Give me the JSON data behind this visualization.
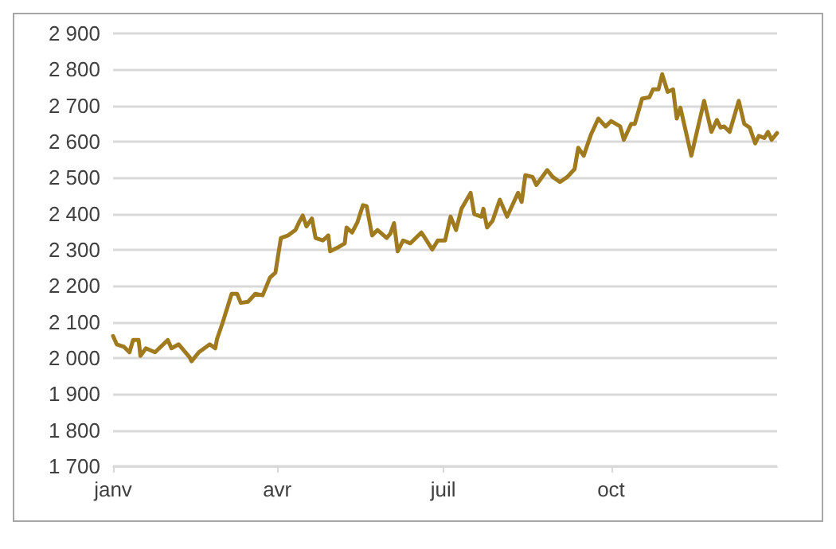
{
  "chart_data": {
    "type": "line",
    "x": [
      "--01-01",
      "--01-03",
      "--01-07",
      "--01-10",
      "--01-12",
      "--01-15",
      "--01-16",
      "--01-19",
      "--01-24",
      "--01-31",
      "--02-02",
      "--02-06",
      "--02-12",
      "--02-13",
      "--02-17",
      "--02-20",
      "--02-23",
      "--02-26",
      "--02-27",
      "--03-02",
      "--03-07",
      "--03-10",
      "--03-12",
      "--03-16",
      "--03-20",
      "--03-24",
      "--03-28",
      "--03-31",
      "--04-03",
      "--04-07",
      "--04-11",
      "--04-13",
      "--04-15",
      "--04-17",
      "--04-20",
      "--04-22",
      "--04-26",
      "--04-29",
      "--04-30",
      "--05-04",
      "--05-08",
      "--05-09",
      "--05-12",
      "--05-15",
      "--05-18",
      "--05-20",
      "--05-23",
      "--05-26",
      "--05-31",
      "--06-02",
      "--06-04",
      "--06-06",
      "--06-09",
      "--06-13",
      "--06-19",
      "--06-21",
      "--06-25",
      "--06-28",
      "--07-02",
      "--07-05",
      "--07-08",
      "--07-11",
      "--07-16",
      "--07-18",
      "--07-22",
      "--07-23",
      "--07-25",
      "--07-28",
      "--08-01",
      "--08-05",
      "--08-11",
      "--08-13",
      "--08-15",
      "--08-19",
      "--08-21",
      "--08-27",
      "--08-30",
      "--09-03",
      "--09-07",
      "--09-11",
      "--09-13",
      "--09-16",
      "--09-20",
      "--09-24",
      "--09-28",
      "--10-01",
      "--10-06",
      "--10-08",
      "--10-12",
      "--10-14",
      "--10-18",
      "--10-22",
      "--10-24",
      "--10-27",
      "--10-29",
      "--11-01",
      "--11-04",
      "--11-06",
      "--11-08",
      "--11-14",
      "--11-21",
      "--11-25",
      "--11-28",
      "--11-30",
      "--12-02",
      "--12-05",
      "--12-10",
      "--12-13",
      "--12-16",
      "--12-19",
      "--12-21",
      "--12-24",
      "--12-26",
      "--12-28",
      "--12-31"
    ],
    "series": [
      {
        "color": "#a07a1e",
        "values": [
          2061,
          2038,
          2031,
          2016,
          2050,
          2050,
          2006,
          2027,
          2016,
          2050,
          2027,
          2038,
          2002,
          1991,
          2016,
          2027,
          2038,
          2027,
          2053,
          2097,
          2178,
          2178,
          2153,
          2156,
          2178,
          2174,
          2223,
          2237,
          2333,
          2340,
          2355,
          2377,
          2395,
          2365,
          2387,
          2333,
          2326,
          2340,
          2296,
          2306,
          2318,
          2362,
          2348,
          2377,
          2424,
          2421,
          2340,
          2355,
          2333,
          2345,
          2374,
          2296,
          2326,
          2318,
          2348,
          2333,
          2301,
          2326,
          2326,
          2392,
          2355,
          2414,
          2458,
          2399,
          2392,
          2414,
          2362,
          2380,
          2439,
          2392,
          2458,
          2433,
          2507,
          2502,
          2480,
          2521,
          2502,
          2488,
          2502,
          2524,
          2583,
          2561,
          2620,
          2664,
          2642,
          2657,
          2642,
          2605,
          2649,
          2649,
          2719,
          2723,
          2745,
          2745,
          2787,
          2738,
          2745,
          2664,
          2694,
          2561,
          2713,
          2627,
          2660,
          2639,
          2642,
          2627,
          2713,
          2649,
          2639,
          2595,
          2616,
          2610,
          2627,
          2605,
          2624
        ]
      }
    ],
    "xlim": [
      "--01-01",
      "--12-31"
    ],
    "xticks": [
      {
        "value": "--01-01",
        "label": "janv"
      },
      {
        "value": "--04-01",
        "label": "avr"
      },
      {
        "value": "--07-01",
        "label": "juil"
      },
      {
        "value": "--10-01",
        "label": "oct"
      }
    ],
    "ylim": [
      1700,
      2900
    ],
    "yticks": [
      {
        "value": 1700,
        "label": "1 700"
      },
      {
        "value": 1800,
        "label": "1 800"
      },
      {
        "value": 1900,
        "label": "1 900"
      },
      {
        "value": 2000,
        "label": "2 000"
      },
      {
        "value": 2100,
        "label": "2 100"
      },
      {
        "value": 2200,
        "label": "2 200"
      },
      {
        "value": 2300,
        "label": "2 300"
      },
      {
        "value": 2400,
        "label": "2 400"
      },
      {
        "value": 2500,
        "label": "2 500"
      },
      {
        "value": 2600,
        "label": "2 600"
      },
      {
        "value": 2700,
        "label": "2 700"
      },
      {
        "value": 2800,
        "label": "2 800"
      },
      {
        "value": 2900,
        "label": "2 900"
      }
    ],
    "grid": "y",
    "marker": "none",
    "line_style": "solid"
  }
}
